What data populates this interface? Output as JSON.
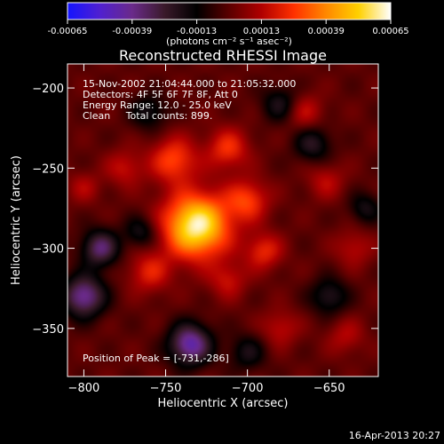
{
  "colorbar": {
    "ticks": [
      "-0.00065",
      "-0.00039",
      "-0.00013",
      "0.00013",
      "0.00039",
      "0.00065"
    ],
    "unit_label": "(photons cm⁻² s⁻¹ asec⁻²)",
    "colors": [
      "#1414ff",
      "#5020d0",
      "#6a2a8a",
      "#3a1a2a",
      "#000000",
      "#5a0000",
      "#b00000",
      "#ff3000",
      "#ff8800",
      "#ffd000",
      "#ffffff"
    ]
  },
  "chart_data": {
    "type": "heatmap",
    "title": "Reconstructed RHESSI Image",
    "xlabel": "Heliocentric X (arcsec)",
    "ylabel": "Heliocentric Y (arcsec)",
    "xlim": [
      -810,
      -620
    ],
    "ylim": [
      -380,
      -185
    ],
    "x_ticks": [
      -800,
      -750,
      -700,
      -650
    ],
    "y_ticks": [
      -200,
      -250,
      -300,
      -350
    ],
    "x_tick_labels": [
      "−800",
      "−750",
      "−700",
      "−650"
    ],
    "y_tick_labels": [
      "−200",
      "−250",
      "−300",
      "−350"
    ],
    "value_range": [
      -0.00065,
      0.00065
    ],
    "peak": {
      "x": -731,
      "y": -286,
      "value": 0.00065
    },
    "sources": [
      {
        "x": -731,
        "y": -286,
        "sigma": 14,
        "amp": 0.00062
      },
      {
        "x": -745,
        "y": -245,
        "sigma": 10,
        "amp": 0.00028
      },
      {
        "x": -712,
        "y": -238,
        "sigma": 9,
        "amp": 0.00024
      },
      {
        "x": -700,
        "y": -270,
        "sigma": 9,
        "amp": 0.00026
      },
      {
        "x": -690,
        "y": -302,
        "sigma": 8,
        "amp": 0.00022
      },
      {
        "x": -760,
        "y": -315,
        "sigma": 9,
        "amp": 0.0002
      },
      {
        "x": -712,
        "y": -320,
        "sigma": 8,
        "amp": 0.00016
      },
      {
        "x": -775,
        "y": -250,
        "sigma": 8,
        "amp": 0.00016
      },
      {
        "x": -665,
        "y": -215,
        "sigma": 8,
        "amp": 0.00016
      },
      {
        "x": -652,
        "y": -258,
        "sigma": 8,
        "amp": 0.00014
      },
      {
        "x": -635,
        "y": -300,
        "sigma": 8,
        "amp": 0.00014
      },
      {
        "x": -680,
        "y": -350,
        "sigma": 8,
        "amp": 0.00015
      },
      {
        "x": -640,
        "y": -355,
        "sigma": 8,
        "amp": 0.00013
      },
      {
        "x": -800,
        "y": -262,
        "sigma": 7,
        "amp": 0.00012
      },
      {
        "x": -790,
        "y": -300,
        "sigma": 8,
        "amp": -0.00035
      },
      {
        "x": -800,
        "y": -330,
        "sigma": 9,
        "amp": -0.00042
      },
      {
        "x": -735,
        "y": -360,
        "sigma": 9,
        "amp": -0.00045
      },
      {
        "x": -765,
        "y": -290,
        "sigma": 7,
        "amp": -0.0002
      },
      {
        "x": -660,
        "y": -235,
        "sigma": 8,
        "amp": -0.00022
      },
      {
        "x": -680,
        "y": -210,
        "sigma": 8,
        "amp": -0.0002
      },
      {
        "x": -760,
        "y": -215,
        "sigma": 8,
        "amp": -0.00018
      },
      {
        "x": -650,
        "y": -330,
        "sigma": 8,
        "amp": -0.00022
      },
      {
        "x": -700,
        "y": -365,
        "sigma": 8,
        "amp": -0.00018
      },
      {
        "x": -628,
        "y": -275,
        "sigma": 7,
        "amp": -0.00018
      }
    ]
  },
  "annotations": {
    "time_range": "15-Nov-2002 21:04:44.000 to 21:05:32.000",
    "detectors": "Detectors: 4F 5F 6F 7F 8F, Att 0",
    "energy_range": "Energy Range: 12.0 - 25.0 keV",
    "clean_counts": "Clean     Total counts: 899.",
    "peak_position": "Position of Peak = [-731,-286]"
  },
  "footer": {
    "timestamp": "16-Apr-2013 20:27"
  }
}
